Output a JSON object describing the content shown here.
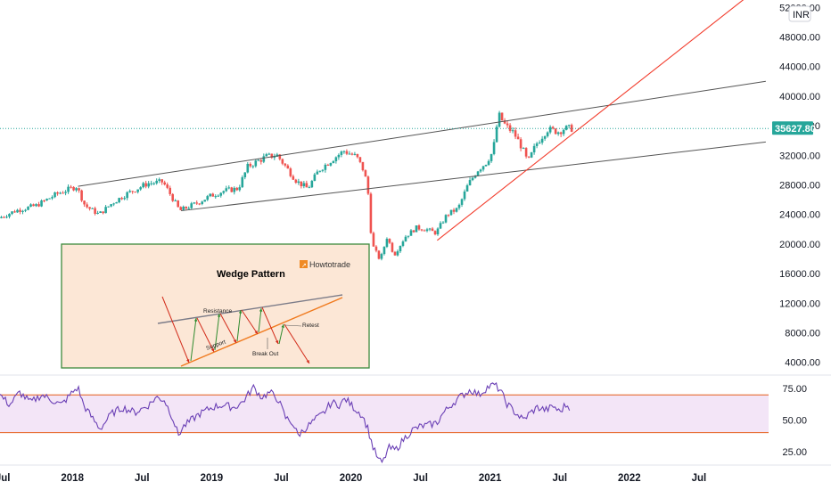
{
  "currency_badge": "INR",
  "colors": {
    "up": "#26a69a",
    "down": "#ef5350",
    "trend_red": "#f23c2c",
    "channel": "#555555",
    "price_line": "#26a69a",
    "rsi_line": "#6a3fb5",
    "rsi_band": "#f3e5f7",
    "rsi_bounds": "#e65c19",
    "inset_bg": "#fce7d6",
    "inset_border": "#3d8a3d"
  },
  "chart_data": {
    "type": "candlestick",
    "price_axis": {
      "ticks": [
        "52000.00",
        "48000.00",
        "44000.00",
        "40000.00",
        "36000.00",
        "32000.00",
        "28000.00",
        "24000.00",
        "20000.00",
        "16000.00",
        "12000.00",
        "8000.00",
        "4000.00"
      ],
      "range": [
        2400,
        53000
      ]
    },
    "last_price": {
      "value": 35627.8,
      "label": "35627.80"
    },
    "time_axis": {
      "labels": [
        "Jul",
        "2018",
        "Jul",
        "2019",
        "Jul",
        "2020",
        "Jul",
        "2021",
        "Jul",
        "2022",
        "Jul"
      ],
      "label_times": [
        2017.5,
        2018.0,
        2018.5,
        2019.0,
        2019.5,
        2020.0,
        2020.5,
        2021.0,
        2021.5,
        2022.0,
        2022.5
      ],
      "range": [
        2017.48,
        2023.0
      ]
    },
    "price_path": [
      [
        2017.48,
        23500
      ],
      [
        2017.6,
        24500
      ],
      [
        2017.75,
        25200
      ],
      [
        2017.9,
        26800
      ],
      [
        2018.04,
        27800
      ],
      [
        2018.1,
        25200
      ],
      [
        2018.2,
        24000
      ],
      [
        2018.3,
        25600
      ],
      [
        2018.4,
        26800
      ],
      [
        2018.55,
        28200
      ],
      [
        2018.66,
        28400
      ],
      [
        2018.72,
        26500
      ],
      [
        2018.78,
        24500
      ],
      [
        2018.9,
        25500
      ],
      [
        2019.0,
        26500
      ],
      [
        2019.1,
        27200
      ],
      [
        2019.2,
        27500
      ],
      [
        2019.27,
        30500
      ],
      [
        2019.4,
        31800
      ],
      [
        2019.48,
        32000
      ],
      [
        2019.56,
        30000
      ],
      [
        2019.62,
        28500
      ],
      [
        2019.7,
        27500
      ],
      [
        2019.78,
        30000
      ],
      [
        2019.88,
        31500
      ],
      [
        2019.96,
        32600
      ],
      [
        2020.05,
        31800
      ],
      [
        2020.1,
        30000
      ],
      [
        2020.13,
        27800
      ],
      [
        2020.16,
        20000
      ],
      [
        2020.22,
        17800
      ],
      [
        2020.27,
        21000
      ],
      [
        2020.32,
        18500
      ],
      [
        2020.4,
        21000
      ],
      [
        2020.48,
        22200
      ],
      [
        2020.55,
        22000
      ],
      [
        2020.62,
        21500
      ],
      [
        2020.7,
        24000
      ],
      [
        2020.78,
        24800
      ],
      [
        2020.85,
        28000
      ],
      [
        2020.92,
        30000
      ],
      [
        2020.98,
        31000
      ],
      [
        2021.03,
        32500
      ],
      [
        2021.07,
        37500
      ],
      [
        2021.12,
        36000
      ],
      [
        2021.18,
        35000
      ],
      [
        2021.24,
        33000
      ],
      [
        2021.28,
        31000
      ],
      [
        2021.34,
        33500
      ],
      [
        2021.42,
        35500
      ],
      [
        2021.5,
        35200
      ],
      [
        2021.54,
        35600
      ],
      [
        2021.58,
        35628
      ]
    ],
    "rsi": {
      "ticks": [
        "75.00",
        "50.00",
        "25.00"
      ],
      "bounds": [
        70,
        40
      ],
      "range": [
        15,
        85
      ],
      "path": [
        [
          2017.48,
          70
        ],
        [
          2017.55,
          62
        ],
        [
          2017.62,
          72
        ],
        [
          2017.7,
          64
        ],
        [
          2017.78,
          70
        ],
        [
          2017.85,
          66
        ],
        [
          2017.92,
          62
        ],
        [
          2018.0,
          72
        ],
        [
          2018.04,
          76
        ],
        [
          2018.08,
          62
        ],
        [
          2018.14,
          52
        ],
        [
          2018.2,
          43
        ],
        [
          2018.28,
          55
        ],
        [
          2018.36,
          60
        ],
        [
          2018.45,
          56
        ],
        [
          2018.55,
          62
        ],
        [
          2018.6,
          68
        ],
        [
          2018.66,
          66
        ],
        [
          2018.72,
          52
        ],
        [
          2018.76,
          38
        ],
        [
          2018.8,
          45
        ],
        [
          2018.9,
          54
        ],
        [
          2019.0,
          60
        ],
        [
          2019.08,
          62
        ],
        [
          2019.16,
          60
        ],
        [
          2019.22,
          64
        ],
        [
          2019.26,
          70
        ],
        [
          2019.3,
          76
        ],
        [
          2019.36,
          68
        ],
        [
          2019.42,
          72
        ],
        [
          2019.48,
          66
        ],
        [
          2019.53,
          52
        ],
        [
          2019.58,
          48
        ],
        [
          2019.62,
          38
        ],
        [
          2019.68,
          44
        ],
        [
          2019.74,
          50
        ],
        [
          2019.8,
          55
        ],
        [
          2019.86,
          64
        ],
        [
          2019.92,
          62
        ],
        [
          2019.96,
          67
        ],
        [
          2020.02,
          60
        ],
        [
          2020.08,
          54
        ],
        [
          2020.12,
          44
        ],
        [
          2020.16,
          28
        ],
        [
          2020.2,
          18
        ],
        [
          2020.23,
          16
        ],
        [
          2020.27,
          28
        ],
        [
          2020.32,
          26
        ],
        [
          2020.38,
          35
        ],
        [
          2020.44,
          42
        ],
        [
          2020.5,
          45
        ],
        [
          2020.56,
          46
        ],
        [
          2020.62,
          48
        ],
        [
          2020.66,
          55
        ],
        [
          2020.72,
          62
        ],
        [
          2020.78,
          68
        ],
        [
          2020.86,
          74
        ],
        [
          2020.92,
          70
        ],
        [
          2020.98,
          76
        ],
        [
          2021.03,
          78
        ],
        [
          2021.07,
          74
        ],
        [
          2021.12,
          63
        ],
        [
          2021.18,
          56
        ],
        [
          2021.24,
          50
        ],
        [
          2021.28,
          55
        ],
        [
          2021.34,
          60
        ],
        [
          2021.4,
          58
        ],
        [
          2021.46,
          61
        ],
        [
          2021.5,
          56
        ],
        [
          2021.54,
          62
        ],
        [
          2021.58,
          60
        ]
      ]
    },
    "annotations": {
      "channel_upper": [
        [
          2018.04,
          27800
        ],
        [
          2022.98,
          42000
        ]
      ],
      "channel_lower": [
        [
          2018.78,
          24500
        ],
        [
          2022.98,
          33800
        ]
      ],
      "uptrend_line": [
        [
          2020.62,
          20500
        ],
        [
          2022.85,
          53500
        ]
      ]
    }
  },
  "inset": {
    "title": "Wedge Pattern",
    "brand": "Howtotrade",
    "labels": {
      "resistance": "Resistance",
      "support": "Support",
      "breakout": "Break Out",
      "retest": "Retest"
    }
  }
}
